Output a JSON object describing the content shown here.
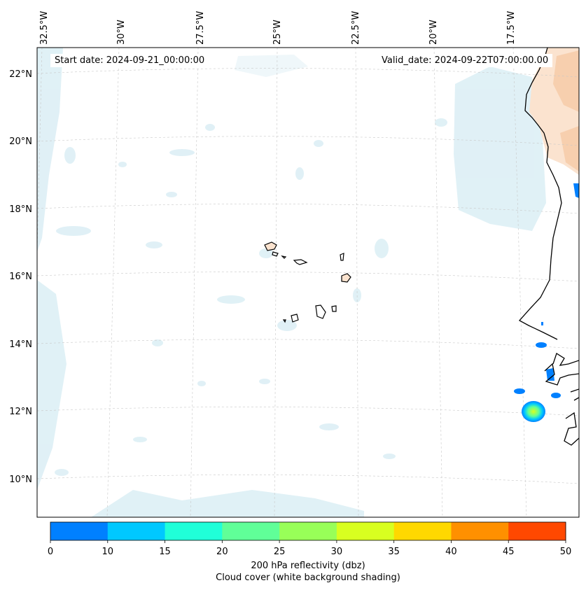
{
  "map": {
    "lon_labels": [
      "32.5°W",
      "30°W",
      "27.5°W",
      "25°W",
      "22.5°W",
      "20°W",
      "17.5°W"
    ],
    "lat_labels": [
      "22°N",
      "20°N",
      "18°N",
      "16°N",
      "14°N",
      "12°N",
      "10°N"
    ],
    "start_date": "Start date: 2024-09-21_00:00:00",
    "valid_date": "Valid_date: 2024-09-22T07:00:00.00"
  },
  "colorbar": {
    "ticks": [
      "0",
      "10",
      "15",
      "20",
      "25",
      "30",
      "35",
      "40",
      "45",
      "50"
    ],
    "colors": [
      "#0080ff",
      "#00c8ff",
      "#20ffd8",
      "#60ff98",
      "#98ff58",
      "#d8ff20",
      "#ffd800",
      "#ff9000",
      "#ff4800"
    ],
    "label_line1": "200 hPa reflectivity (dbz)",
    "label_line2": "Cloud cover (white background shading)"
  }
}
